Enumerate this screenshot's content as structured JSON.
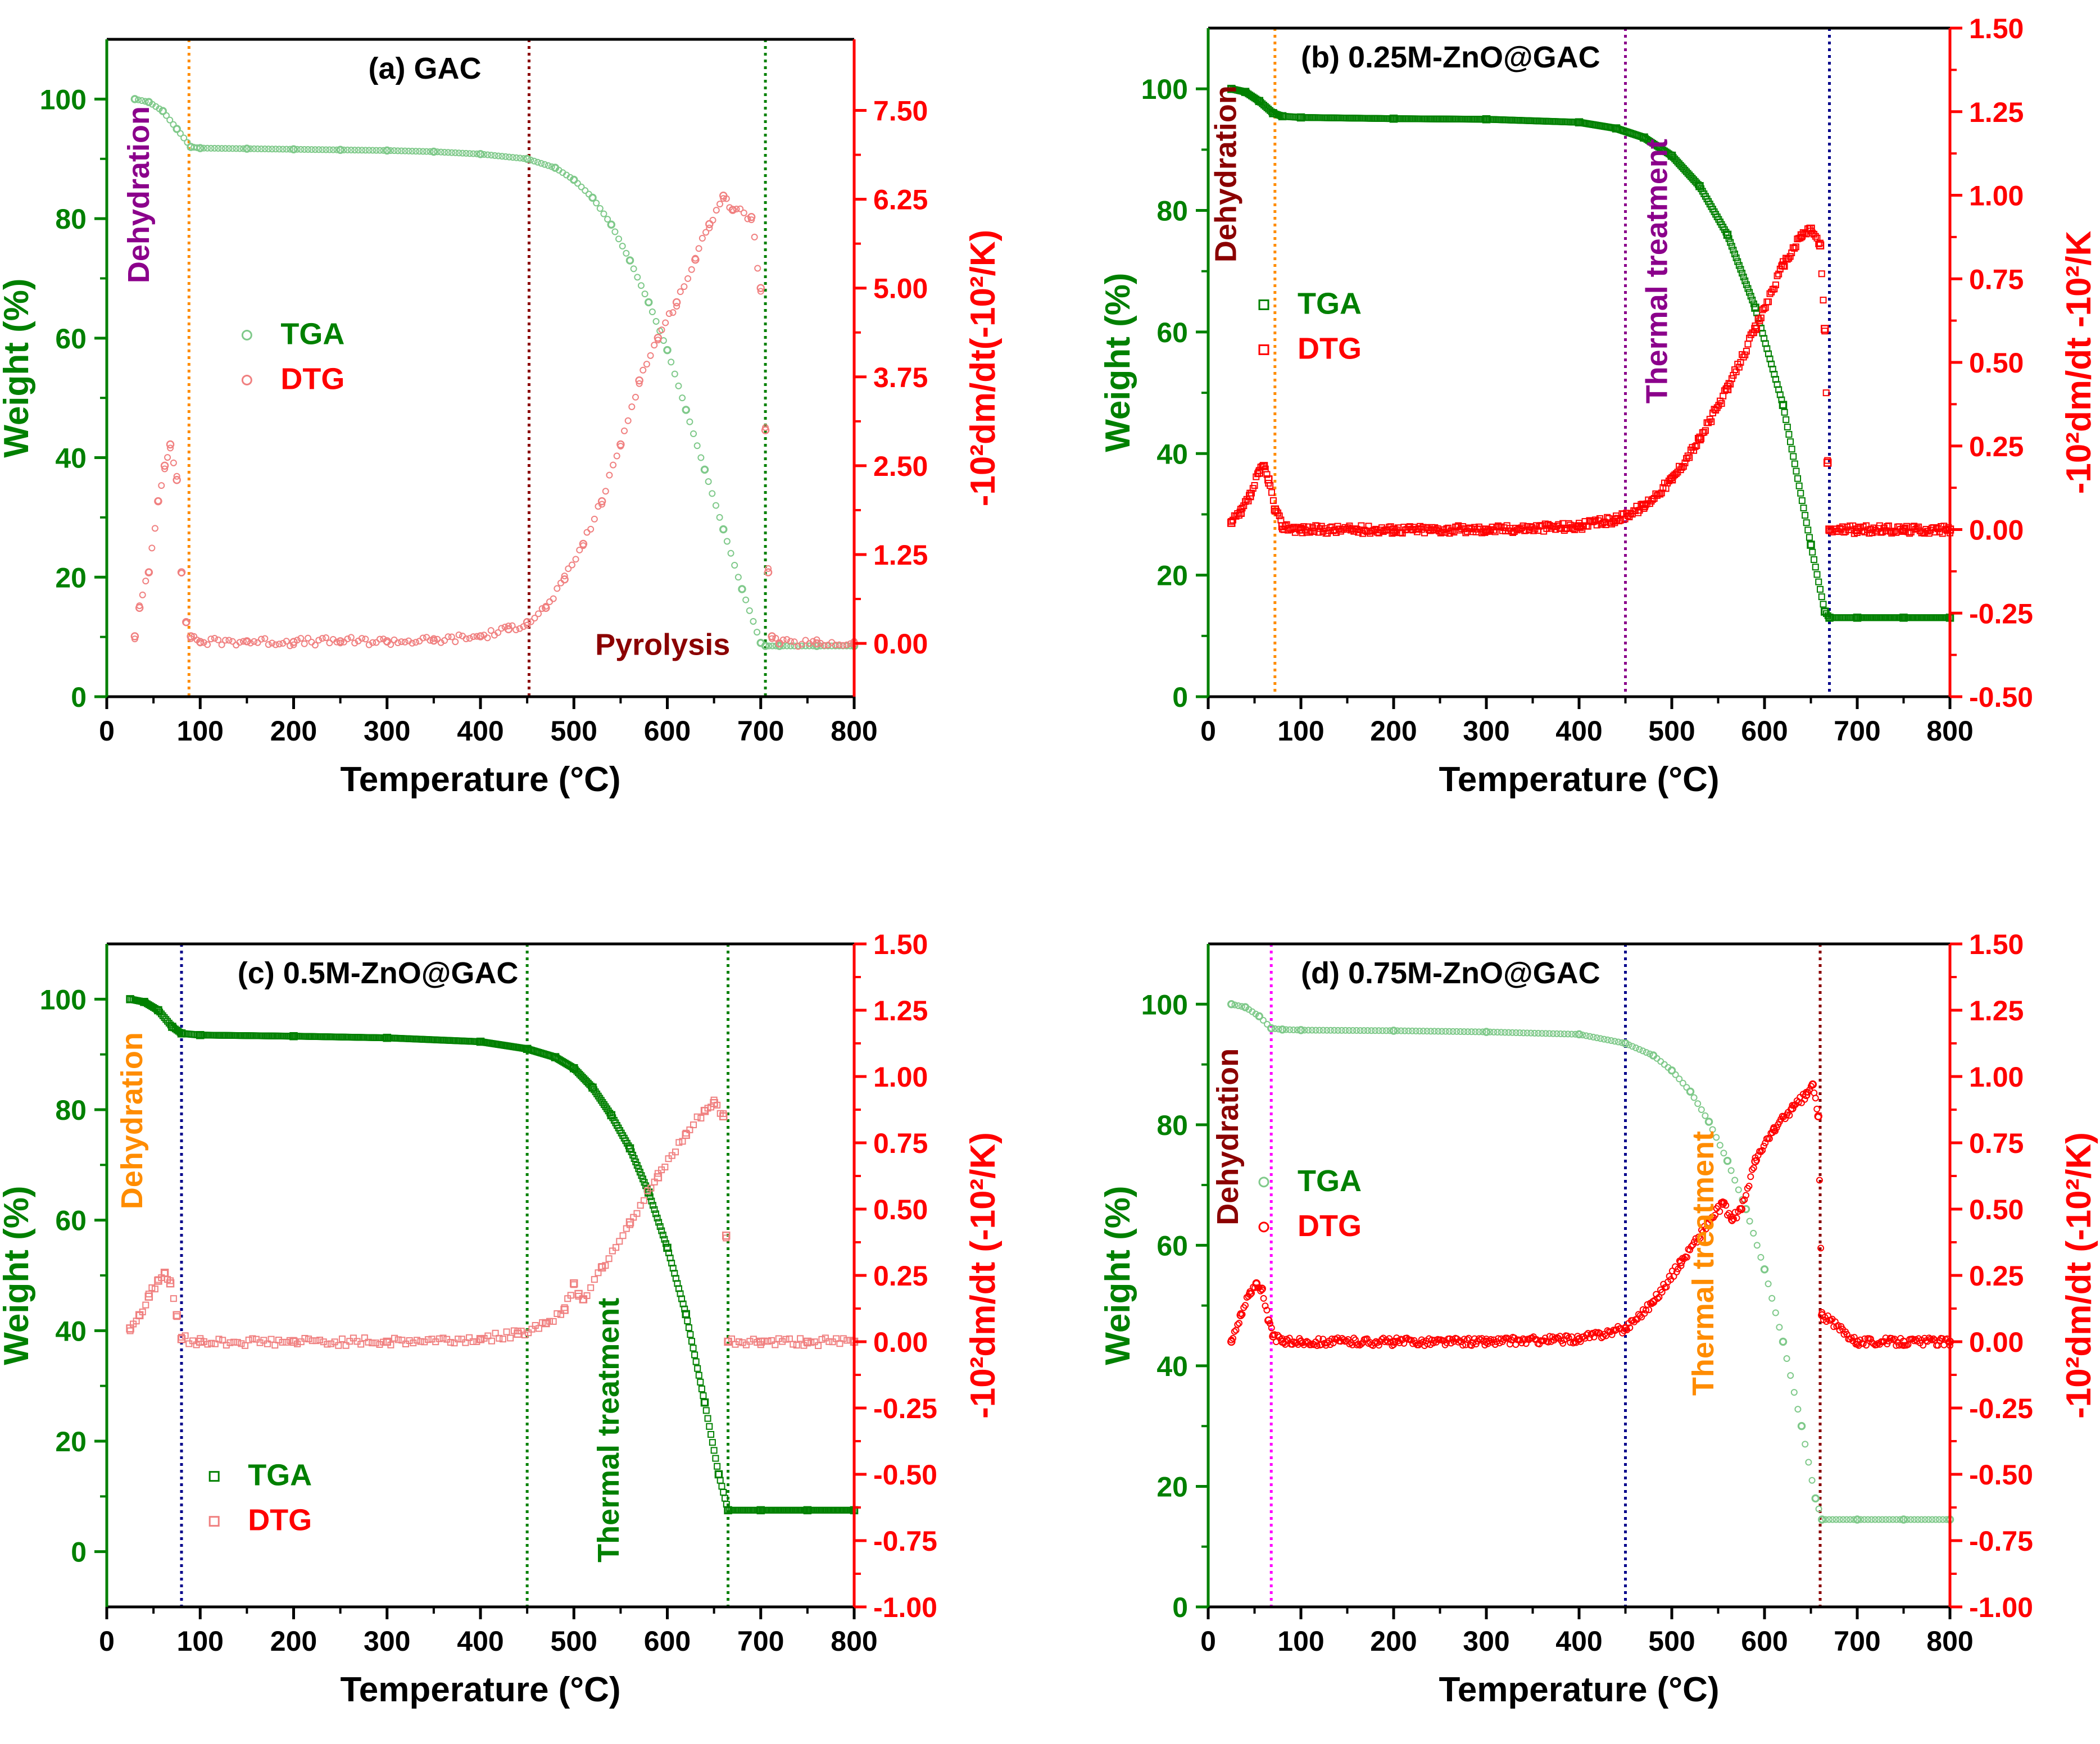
{
  "figure": {
    "colors": {
      "tga": "#008000",
      "tga_light": "#7fc98a",
      "dtg": "#ff0000",
      "dtg_light": "#f08080",
      "axis_left": "#008000",
      "axis_right": "#ff0000",
      "axis_bottom": "#000000",
      "vline_orange": "#ff8c00",
      "vline_darkred": "#8b0000",
      "vline_green": "#008000",
      "vline_navy": "#00008b",
      "vline_purple": "#8b008b",
      "vline_magenta": "#ff00ff"
    }
  },
  "chart_data": [
    {
      "type": "line",
      "title": "(a) GAC",
      "xlabel": "Temperature (°C)",
      "ylabel": "Weight (%)",
      "y2label": "-10²dm/dt(-10²/K)",
      "xlim": [
        0,
        800
      ],
      "xticks": [
        0,
        100,
        200,
        300,
        400,
        500,
        600,
        700,
        800
      ],
      "ylim": [
        0,
        110
      ],
      "yticks": [
        0,
        20,
        40,
        60,
        80,
        100
      ],
      "y2lim": [
        -0.75,
        8.5
      ],
      "y2ticks": [
        0.0,
        1.25,
        2.5,
        3.75,
        5.0,
        6.25,
        7.5
      ],
      "y2ticklabels": [
        "0.00",
        "1.25",
        "2.50",
        "3.75",
        "5.00",
        "6.25",
        "7.50"
      ],
      "marker": "circle",
      "tga_style": "light",
      "dtg_style": "light",
      "legend": {
        "position": "middle-left",
        "tga": "TGA",
        "dtg": "DTG"
      },
      "series": [
        {
          "name": "TGA",
          "axis": "left",
          "x": [
            30,
            45,
            60,
            75,
            90,
            100,
            150,
            200,
            250,
            300,
            350,
            400,
            450,
            480,
            500,
            520,
            540,
            560,
            580,
            600,
            620,
            640,
            660,
            680,
            700,
            705,
            720,
            760,
            800
          ],
          "values": [
            100,
            99.5,
            98,
            95,
            92,
            91.8,
            91.7,
            91.6,
            91.5,
            91.4,
            91.2,
            90.8,
            90,
            88.5,
            86.5,
            83.5,
            79,
            73,
            66,
            58,
            48,
            38,
            28,
            18,
            9,
            8.5,
            8.5,
            8.5,
            8.5
          ]
        },
        {
          "name": "DTG",
          "axis": "right",
          "x": [
            30,
            35,
            45,
            55,
            62,
            68,
            75,
            80,
            85,
            90,
            100,
            150,
            200,
            250,
            300,
            350,
            400,
            430,
            450,
            470,
            490,
            510,
            530,
            550,
            570,
            590,
            610,
            630,
            645,
            660,
            670,
            690,
            700,
            705,
            708,
            712,
            720,
            760,
            800
          ],
          "values": [
            0.1,
            0.5,
            1.0,
            2.0,
            2.5,
            2.8,
            2.3,
            1.0,
            0.3,
            0.1,
            0.02,
            0.03,
            0.02,
            0.03,
            0.03,
            0.04,
            0.1,
            0.2,
            0.3,
            0.5,
            0.9,
            1.4,
            2.0,
            2.8,
            3.7,
            4.3,
            4.8,
            5.4,
            5.9,
            6.3,
            6.1,
            6.0,
            5.0,
            3.0,
            1.0,
            0.1,
            0.0,
            0.0,
            0.0
          ]
        }
      ],
      "vlines": [
        {
          "x": 88,
          "color": "#ff8c00"
        },
        {
          "x": 452,
          "color": "#8b0000"
        },
        {
          "x": 705,
          "color": "#008000"
        }
      ],
      "annotations": [
        {
          "id": "dehydration",
          "text": "Dehydration",
          "color": "#8b008b",
          "x": 45,
          "y": 84,
          "rotate": true
        },
        {
          "id": "pyrolysis",
          "text": "Pyrolysis",
          "color": "#8b0000",
          "x": 595,
          "y": 7,
          "rotate": false
        }
      ]
    },
    {
      "type": "line",
      "title": "(b) 0.25M-ZnO@GAC",
      "xlabel": "Temperature (°C)",
      "ylabel": "Weight (%)",
      "y2label": "-10²dm/dt  -10²/K",
      "xlim": [
        0,
        800
      ],
      "xticks": [
        0,
        100,
        200,
        300,
        400,
        500,
        600,
        700,
        800
      ],
      "ylim": [
        0,
        110
      ],
      "yticks": [
        0,
        20,
        40,
        60,
        80,
        100
      ],
      "y2lim": [
        -0.5,
        1.5
      ],
      "y2ticks": [
        -0.5,
        -0.25,
        0.0,
        0.25,
        0.5,
        0.75,
        1.0,
        1.25,
        1.5
      ],
      "y2ticklabels": [
        "-0.50",
        "-0.25",
        "0.00",
        "0.25",
        "0.50",
        "0.75",
        "1.00",
        "1.25",
        "1.50"
      ],
      "marker": "square",
      "tga_style": "bold",
      "dtg_style": "bold",
      "legend": {
        "position": "upper-left",
        "tga": "TGA",
        "dtg": "DTG"
      },
      "series": [
        {
          "name": "TGA",
          "axis": "left",
          "x": [
            25,
            40,
            55,
            70,
            80,
            100,
            200,
            300,
            400,
            440,
            470,
            500,
            530,
            560,
            590,
            620,
            650,
            665,
            670,
            700,
            750,
            800
          ],
          "values": [
            100,
            99.5,
            98,
            96,
            95.5,
            95.3,
            95.1,
            95,
            94.5,
            93.5,
            92,
            89,
            84,
            76,
            64,
            48,
            25,
            14,
            13,
            13,
            13,
            13
          ]
        },
        {
          "name": "DTG",
          "axis": "right",
          "x": [
            25,
            35,
            45,
            55,
            60,
            65,
            72,
            80,
            100,
            200,
            300,
            400,
            440,
            470,
            500,
            530,
            560,
            590,
            620,
            640,
            650,
            660,
            665,
            668,
            670,
            700,
            750,
            800
          ],
          "values": [
            0.02,
            0.05,
            0.1,
            0.17,
            0.19,
            0.15,
            0.06,
            0.01,
            0.0,
            0.0,
            0.0,
            0.01,
            0.03,
            0.07,
            0.15,
            0.27,
            0.42,
            0.6,
            0.79,
            0.88,
            0.9,
            0.85,
            0.6,
            0.2,
            0.0,
            0.0,
            0.0,
            0.0
          ]
        }
      ],
      "vlines": [
        {
          "x": 72,
          "color": "#ff8c00"
        },
        {
          "x": 450,
          "color": "#8b008b"
        },
        {
          "x": 670,
          "color": "#00008b"
        }
      ],
      "annotations": [
        {
          "id": "dehydration",
          "text": "Dehydration",
          "color": "#8b0000",
          "x": 30,
          "y": 86,
          "rotate": true
        },
        {
          "id": "thermal-treatment",
          "text": "Thermal treatment",
          "color": "#8b008b",
          "x": 495,
          "y": 70,
          "rotate": true
        }
      ]
    },
    {
      "type": "line",
      "title": "(c) 0.5M-ZnO@GAC",
      "xlabel": "Temperature (°C)",
      "ylabel": "Weight (%)",
      "y2label": "-10²dm/dt (-10²/K)",
      "xlim": [
        0,
        800
      ],
      "xticks": [
        0,
        100,
        200,
        300,
        400,
        500,
        600,
        700,
        800
      ],
      "ylim": [
        -10,
        110
      ],
      "yticks": [
        0,
        20,
        40,
        60,
        80,
        100
      ],
      "y2lim": [
        -1.0,
        1.5
      ],
      "y2ticks": [
        -1.0,
        -0.75,
        -0.5,
        -0.25,
        0.0,
        0.25,
        0.5,
        0.75,
        1.0,
        1.25,
        1.5
      ],
      "y2ticklabels": [
        "-1.00",
        "-0.75",
        "-0.50",
        "-0.25",
        "0.00",
        "0.25",
        "0.50",
        "0.75",
        "1.00",
        "1.25",
        "1.50"
      ],
      "marker": "square",
      "tga_style": "bold",
      "dtg_style": "light",
      "legend": {
        "position": "bottom-left",
        "tga": "TGA",
        "dtg": "DTG"
      },
      "series": [
        {
          "name": "TGA",
          "axis": "left",
          "x": [
            25,
            40,
            55,
            70,
            80,
            100,
            200,
            300,
            400,
            450,
            480,
            500,
            520,
            540,
            560,
            580,
            600,
            620,
            640,
            655,
            665,
            700,
            750,
            800
          ],
          "values": [
            100,
            99.5,
            98,
            95,
            93.8,
            93.5,
            93.3,
            93,
            92.3,
            91,
            89.5,
            87.5,
            84,
            79,
            73,
            65,
            55,
            43,
            27,
            14,
            7.5,
            7.5,
            7.5,
            7.5
          ]
        },
        {
          "name": "DTG",
          "axis": "right",
          "x": [
            25,
            35,
            45,
            55,
            62,
            68,
            75,
            80,
            100,
            200,
            300,
            400,
            440,
            470,
            490,
            500,
            505,
            510,
            530,
            560,
            590,
            620,
            640,
            650,
            660,
            663,
            665,
            700,
            750,
            800
          ],
          "values": [
            0.05,
            0.1,
            0.17,
            0.23,
            0.26,
            0.22,
            0.1,
            0.01,
            0.0,
            0.0,
            0.0,
            0.01,
            0.03,
            0.07,
            0.12,
            0.22,
            0.18,
            0.16,
            0.28,
            0.45,
            0.62,
            0.78,
            0.87,
            0.9,
            0.85,
            0.4,
            0.0,
            0.0,
            0.0,
            0.0
          ]
        }
      ],
      "vlines": [
        {
          "x": 80,
          "color": "#00008b"
        },
        {
          "x": 450,
          "color": "#008000"
        },
        {
          "x": 665,
          "color": "#008000"
        }
      ],
      "annotations": [
        {
          "id": "dehydration",
          "text": "Dehydration",
          "color": "#ff8c00",
          "x": 38,
          "y": 78,
          "rotate": true
        },
        {
          "id": "thermal-treatment",
          "text": "Thermal treatment",
          "color": "#008000",
          "x": 548,
          "y": 22,
          "rotate": true
        }
      ]
    },
    {
      "type": "line",
      "title": "(d) 0.75M-ZnO@GAC",
      "xlabel": "Temperature (°C)",
      "ylabel": "Weight (%)",
      "y2label": "-10²dm/dt (-10²/K)",
      "xlim": [
        0,
        800
      ],
      "xticks": [
        0,
        100,
        200,
        300,
        400,
        500,
        600,
        700,
        800
      ],
      "ylim": [
        0,
        110
      ],
      "yticks": [
        0,
        20,
        40,
        60,
        80,
        100
      ],
      "y2lim": [
        -1.0,
        1.5
      ],
      "y2ticks": [
        -1.0,
        -0.75,
        -0.5,
        -0.25,
        0.0,
        0.25,
        0.5,
        0.75,
        1.0,
        1.25,
        1.5
      ],
      "y2ticklabels": [
        "-1.00",
        "-0.75",
        "-0.50",
        "-0.25",
        "0.00",
        "0.25",
        "0.50",
        "0.75",
        "1.00",
        "1.25",
        "1.50"
      ],
      "marker": "circle",
      "tga_style": "light",
      "dtg_style": "bold",
      "legend": {
        "position": "upper-left",
        "tga": "TGA",
        "dtg": "DTG"
      },
      "series": [
        {
          "name": "TGA",
          "axis": "left",
          "x": [
            25,
            40,
            55,
            68,
            80,
            100,
            200,
            300,
            400,
            450,
            480,
            500,
            520,
            540,
            560,
            580,
            600,
            620,
            640,
            655,
            662,
            700,
            750,
            800
          ],
          "values": [
            100,
            99.5,
            98,
            96,
            95.8,
            95.7,
            95.6,
            95.4,
            95,
            93.5,
            91.5,
            89,
            85.5,
            80.5,
            74,
            66,
            56,
            44,
            30,
            18,
            14.5,
            14.5,
            14.5,
            14.5
          ]
        },
        {
          "name": "DTG",
          "axis": "right",
          "x": [
            25,
            35,
            45,
            52,
            58,
            65,
            70,
            80,
            100,
            200,
            300,
            400,
            450,
            480,
            510,
            540,
            555,
            565,
            575,
            590,
            610,
            630,
            645,
            652,
            658,
            662,
            700,
            750,
            800
          ],
          "values": [
            0.0,
            0.1,
            0.18,
            0.22,
            0.2,
            0.08,
            0.02,
            0.0,
            0.0,
            0.0,
            0.0,
            0.01,
            0.05,
            0.15,
            0.3,
            0.45,
            0.52,
            0.46,
            0.5,
            0.68,
            0.8,
            0.88,
            0.93,
            0.97,
            0.85,
            0.1,
            0.0,
            0.0,
            0.0
          ]
        }
      ],
      "vlines": [
        {
          "x": 68,
          "color": "#ff00ff"
        },
        {
          "x": 450,
          "color": "#00008b"
        },
        {
          "x": 660,
          "color": "#8b0000"
        }
      ],
      "annotations": [
        {
          "id": "dehydration",
          "text": "Dehydration",
          "color": "#8b0000",
          "x": 32,
          "y": 78,
          "rotate": true
        },
        {
          "id": "thermal-treatment",
          "text": "Thermal treatment",
          "color": "#ff8c00",
          "x": 545,
          "y": 57,
          "rotate": true
        }
      ]
    }
  ]
}
